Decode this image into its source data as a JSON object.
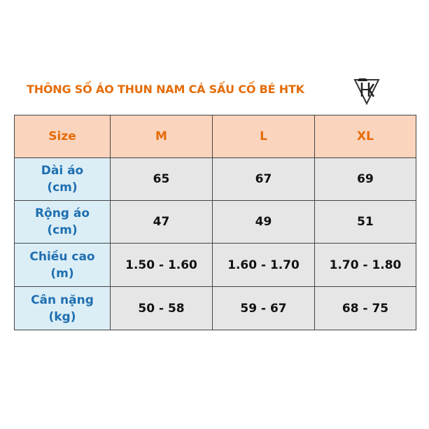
{
  "title": "THÔNG SỐ ÁO THUN NAM CÁ SẤU CỐ BÉ HTK",
  "table": {
    "header": [
      "Size",
      "M",
      "L",
      "XL"
    ],
    "rows": [
      [
        "Dài áo\n(cm)",
        65,
        67,
        69
      ],
      [
        "Rộng áo\n(cm)",
        47,
        49,
        51
      ],
      [
        "Chiều cao\n(m)",
        "1.50 - 1.60",
        "1.60 - 1.70",
        "1.70 - 1.80"
      ],
      [
        "Cân nặng\n(kg)",
        "50 - 58",
        "59 - 67",
        "68 - 75"
      ]
    ]
  }
}
